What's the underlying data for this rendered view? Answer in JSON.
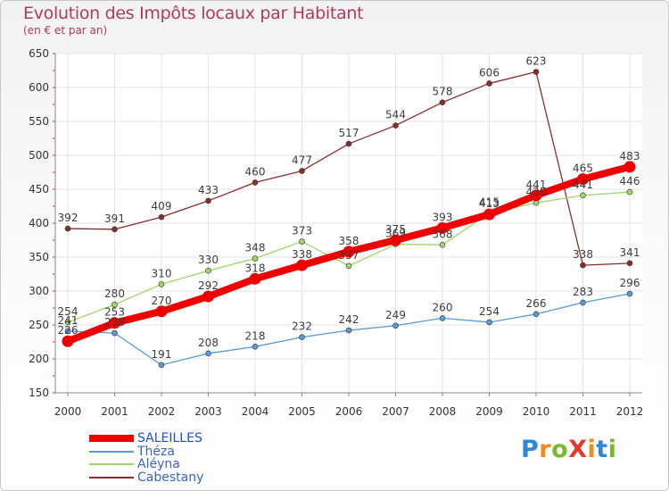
{
  "title": "Evolution des Impôts locaux par Habitant",
  "subtitle": "(en € et par an)",
  "logo_text": "ProXiti",
  "chart_data": {
    "type": "line",
    "title": "Evolution des Impôts locaux par Habitant",
    "subtitle": "(en € et par an)",
    "xlabel": "",
    "ylabel": "",
    "categories": [
      "2000",
      "2001",
      "2002",
      "2003",
      "2004",
      "2005",
      "2006",
      "2007",
      "2008",
      "2009",
      "2010",
      "2011",
      "2012"
    ],
    "ylim": [
      150,
      650
    ],
    "yticks": [
      150,
      200,
      250,
      300,
      350,
      400,
      450,
      500,
      550,
      600,
      650
    ],
    "grid": true,
    "legend_position": "bottom-left",
    "series": [
      {
        "name": "Cabestany",
        "color": "#8b2d2d",
        "values": [
          392,
          391,
          409,
          433,
          460,
          477,
          517,
          544,
          578,
          606,
          623,
          338,
          341
        ]
      },
      {
        "name": "Aléyna",
        "color": "#9ed66a",
        "values": [
          254,
          280,
          310,
          330,
          348,
          373,
          337,
          369,
          368,
          415,
          430,
          441,
          446
        ]
      },
      {
        "name": "Théza",
        "color": "#5b9bd5",
        "values": [
          241,
          238,
          191,
          208,
          218,
          232,
          242,
          249,
          260,
          254,
          266,
          283,
          296
        ]
      },
      {
        "name": "SALEILLES",
        "color": "#ee0000",
        "values": [
          226,
          253,
          270,
          292,
          318,
          338,
          358,
          375,
          393,
          413,
          441,
          465,
          483
        ]
      }
    ]
  }
}
